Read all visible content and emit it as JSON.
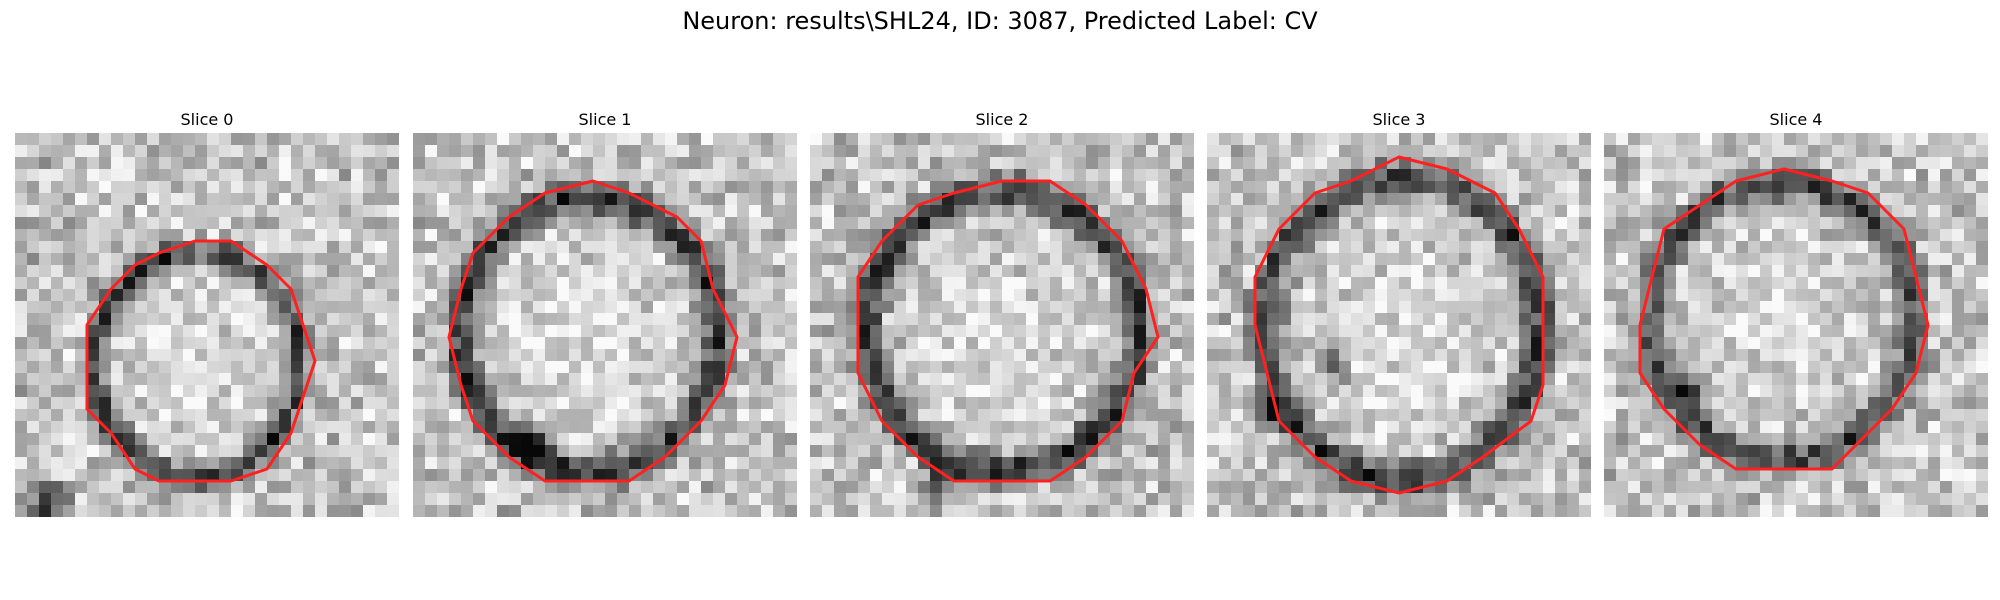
{
  "figure": {
    "title": "Neuron: results\\SHL24, ID: 3087, Predicted Label: CV"
  },
  "colors": {
    "contour": "#ff2020",
    "background": "#ffffff"
  },
  "panels": [
    {
      "title": "Slice 0"
    },
    {
      "title": "Slice 1"
    },
    {
      "title": "Slice 2"
    },
    {
      "title": "Slice 3"
    },
    {
      "title": "Slice 4"
    }
  ]
}
